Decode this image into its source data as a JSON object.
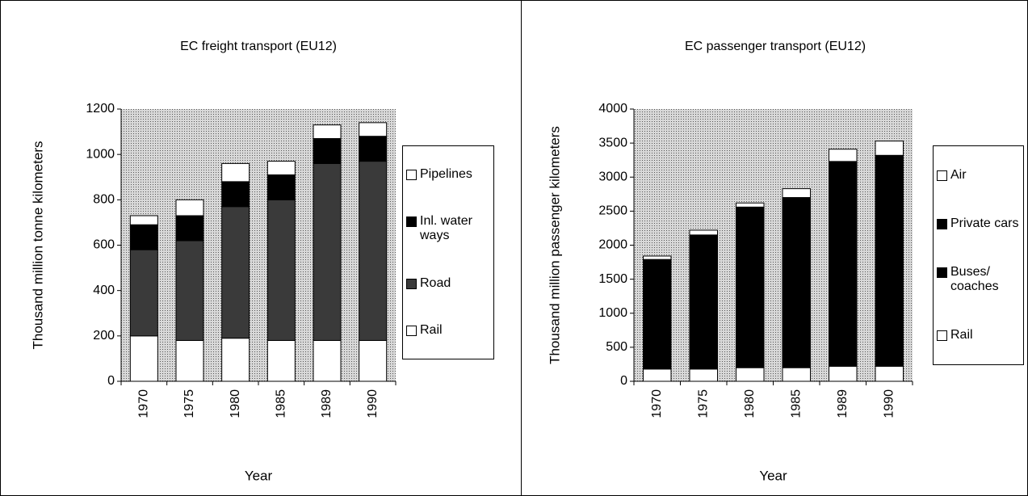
{
  "chart_data": [
    {
      "type": "bar",
      "stacked": true,
      "title": "EC freight transport (EU12)",
      "x_label": "Year",
      "y_label": "Thousand million tonne kilometers",
      "categories": [
        "1970",
        "1975",
        "1980",
        "1985",
        "1989",
        "1990"
      ],
      "series": [
        {
          "name": "Rail",
          "color": "#ffffff",
          "values": [
            200,
            180,
            190,
            180,
            180,
            180
          ]
        },
        {
          "name": "Road",
          "color": "#3a3a3a",
          "values": [
            380,
            440,
            580,
            620,
            780,
            790
          ]
        },
        {
          "name": "Inl. water ways",
          "color": "#000000",
          "values": [
            110,
            110,
            110,
            110,
            110,
            110
          ]
        },
        {
          "name": "Pipelines",
          "color": "#ffffff",
          "values": [
            40,
            70,
            80,
            60,
            60,
            60
          ]
        }
      ],
      "ylim": [
        0,
        1200
      ],
      "yticks": [
        0,
        200,
        400,
        600,
        800,
        1000,
        1200
      ],
      "legend": "right"
    },
    {
      "type": "bar",
      "stacked": true,
      "title": "EC passenger transport (EU12)",
      "x_label": "Year",
      "y_label": "Thousand million passenger kilometers",
      "categories": [
        "1970",
        "1975",
        "1980",
        "1985",
        "1989",
        "1990"
      ],
      "series": [
        {
          "name": "Rail",
          "color": "#ffffff",
          "values": [
            180,
            180,
            200,
            200,
            220,
            220
          ]
        },
        {
          "name": "Buses/ coaches",
          "color": "#000000",
          "values": [
            300,
            320,
            340,
            350,
            360,
            370
          ]
        },
        {
          "name": "Private cars",
          "color": "#000000",
          "values": [
            1310,
            1650,
            2020,
            2150,
            2650,
            2730
          ]
        },
        {
          "name": "Air",
          "color": "#ffffff",
          "values": [
            50,
            70,
            60,
            130,
            180,
            210
          ]
        }
      ],
      "ylim": [
        0,
        4000
      ],
      "yticks": [
        0,
        500,
        1000,
        1500,
        2000,
        2500,
        3000,
        3500,
        4000
      ],
      "legend": "right"
    }
  ]
}
